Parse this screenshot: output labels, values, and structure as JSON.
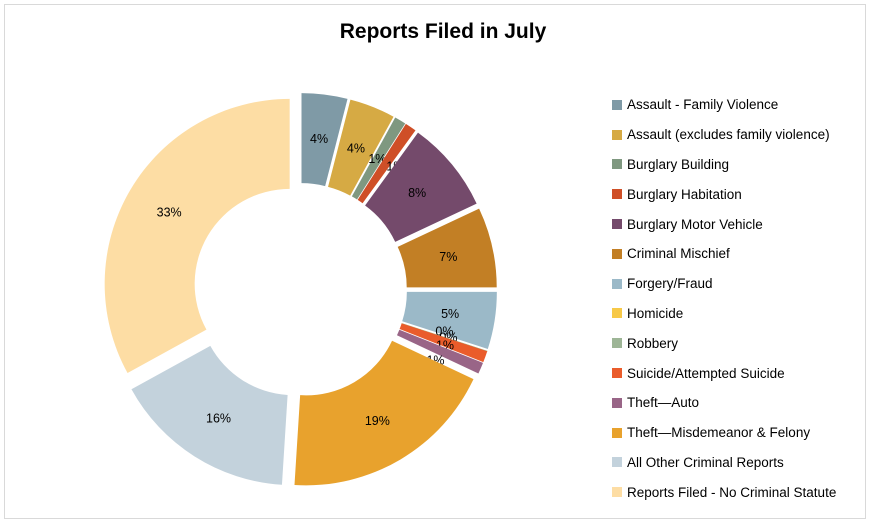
{
  "chart_data": {
    "type": "pie",
    "variant": "exploded-donut",
    "title": "Reports Filed in July",
    "legend_position": "right",
    "slices": [
      {
        "name": "Assault - Family Violence",
        "value": 4,
        "label": "4%",
        "color": "#7f9aa6"
      },
      {
        "name": "Assault (excludes family violence)",
        "value": 4,
        "label": "4%",
        "color": "#d6aa44"
      },
      {
        "name": "Burglary Building",
        "value": 1,
        "label": "1%",
        "color": "#7f9880"
      },
      {
        "name": "Burglary Habitation",
        "value": 1,
        "label": "1%",
        "color": "#cf4f27"
      },
      {
        "name": "Burglary Motor Vehicle",
        "value": 8,
        "label": "8%",
        "color": "#744a6b"
      },
      {
        "name": "Criminal Mischief",
        "value": 7,
        "label": "7%",
        "color": "#c27f25"
      },
      {
        "name": "Forgery/Fraud",
        "value": 5,
        "label": "5%",
        "color": "#9bb9c8"
      },
      {
        "name": "Homicide",
        "value": 0,
        "label": "0%",
        "color": "#f7c948"
      },
      {
        "name": "Robbery",
        "value": 0,
        "label": "0%",
        "color": "#9db596"
      },
      {
        "name": "Suicide/Attempted Suicide",
        "value": 1,
        "label": "1%",
        "color": "#ea5c2b"
      },
      {
        "name": "Theft—Auto",
        "value": 1,
        "label": "1%",
        "color": "#996587"
      },
      {
        "name": "Theft—Misdemeanor & Felony",
        "value": 19,
        "label": "19%",
        "color": "#e8a22d"
      },
      {
        "name": "All Other Criminal Reports",
        "value": 16,
        "label": "16%",
        "color": "#c3d2dc"
      },
      {
        "name": "Reports Filed - No Criminal Statute",
        "value": 33,
        "label": "33%",
        "color": "#fddda4"
      }
    ]
  }
}
